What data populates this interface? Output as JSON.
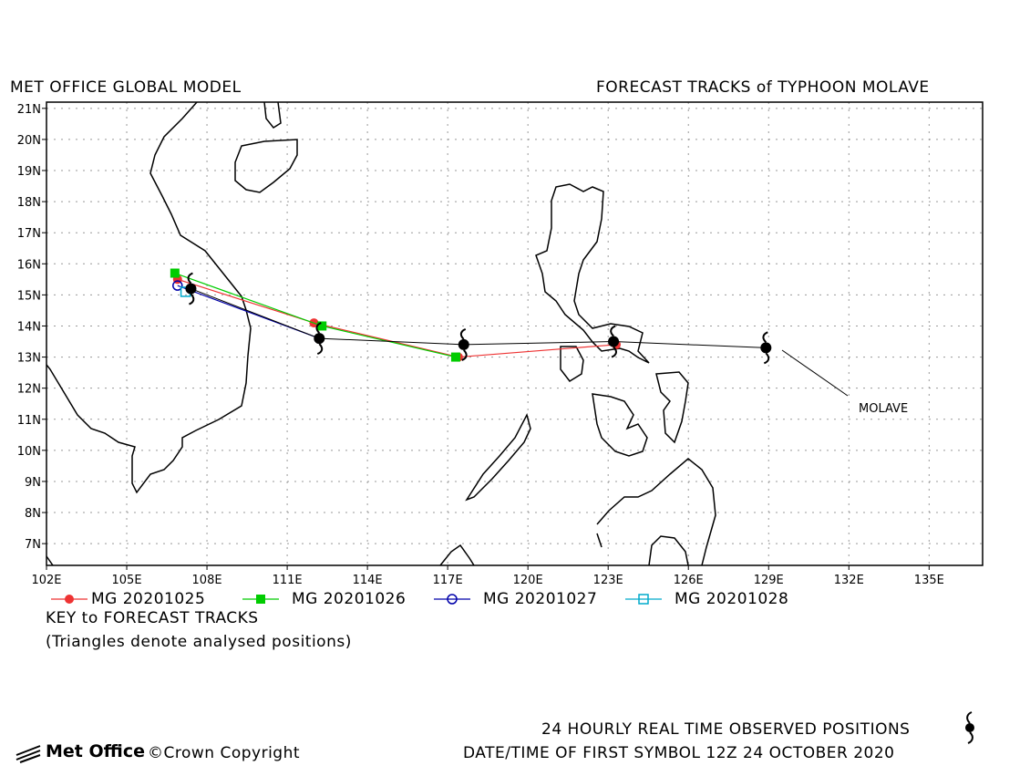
{
  "header": {
    "left_title": "MET OFFICE GLOBAL MODEL",
    "right_title": "FORECAST TRACKS of TYPHOON MOLAVE"
  },
  "storm_label": "MOLAVE",
  "legend": {
    "items": [
      {
        "label": "MG 20201025",
        "color": "#ee3333",
        "marker": "filled-circle"
      },
      {
        "label": "MG 20201026",
        "color": "#00cc00",
        "marker": "filled-square"
      },
      {
        "label": "MG 20201027",
        "color": "#0000aa",
        "marker": "open-circle"
      },
      {
        "label": "MG 20201028",
        "color": "#00aacc",
        "marker": "open-square"
      }
    ],
    "key_title": "KEY to FORECAST TRACKS",
    "key_note": "(Triangles denote analysed positions)"
  },
  "footer": {
    "observed": "24 HOURLY REAL TIME OBSERVED POSITIONS",
    "date_line": "DATE/TIME OF FIRST SYMBOL 12Z 24 OCTOBER 2020",
    "logo": "Met Office",
    "copyright": "Crown Copyright"
  },
  "map": {
    "lon_range": [
      102,
      137
    ],
    "lat_range": [
      6.3,
      21.2
    ],
    "lon_ticks": [
      "102E",
      "105E",
      "108E",
      "111E",
      "114E",
      "117E",
      "120E",
      "123E",
      "126E",
      "129E",
      "132E",
      "135E"
    ],
    "lat_ticks": [
      "21N",
      "20N",
      "19N",
      "18N",
      "17N",
      "16N",
      "15N",
      "14N",
      "13N",
      "12N",
      "11N",
      "10N",
      "9N",
      "8N",
      "7N"
    ],
    "grid": true
  },
  "chart_data": {
    "type": "scatter",
    "observed_positions": [
      [
        128.9,
        13.3
      ],
      [
        123.2,
        13.5
      ],
      [
        117.6,
        13.4
      ],
      [
        112.2,
        13.6
      ],
      [
        107.4,
        15.2
      ]
    ],
    "tracks": [
      {
        "name": "MG 20201025",
        "color": "#ee3333",
        "points": [
          [
            123.3,
            13.4
          ],
          [
            117.4,
            13.0
          ],
          [
            112.0,
            14.1
          ],
          [
            106.9,
            15.5
          ]
        ]
      },
      {
        "name": "MG 20201026",
        "color": "#00cc00",
        "points": [
          [
            117.3,
            13.0
          ],
          [
            112.3,
            14.0
          ],
          [
            106.8,
            15.7
          ]
        ]
      },
      {
        "name": "MG 20201027",
        "color": "#0000aa",
        "points": [
          [
            112.2,
            13.6
          ],
          [
            106.9,
            15.3
          ]
        ]
      },
      {
        "name": "MG 20201028",
        "color": "#00aacc",
        "points": [
          [
            107.2,
            15.1
          ]
        ]
      }
    ]
  }
}
